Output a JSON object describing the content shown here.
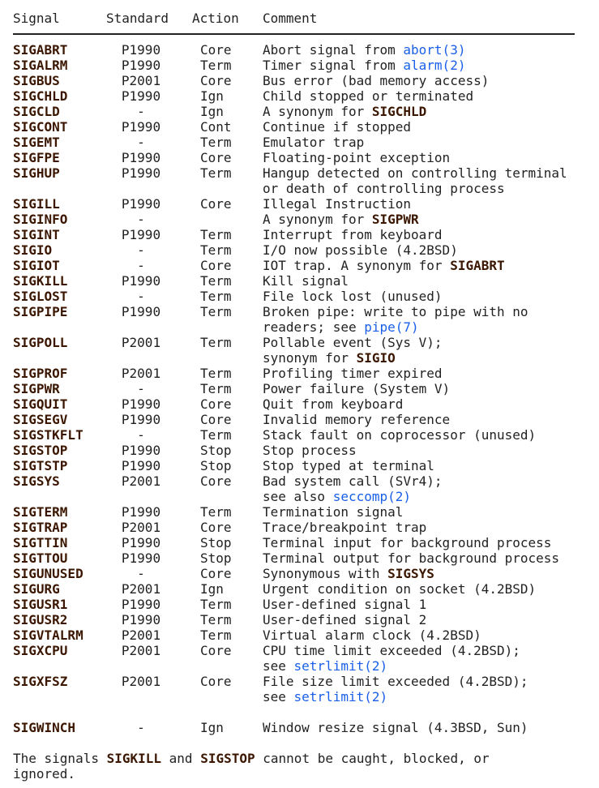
{
  "header": {
    "signal": "Signal",
    "standard": "Standard",
    "action": "Action",
    "comment": "Comment"
  },
  "rows": [
    {
      "signal": "SIGABRT",
      "standard": "P1990",
      "action": "Core",
      "comment": [
        [
          {
            "t": "Abort signal from "
          },
          {
            "t": "abort(3)",
            "link": true
          }
        ]
      ]
    },
    {
      "signal": "SIGALRM",
      "standard": "P1990",
      "action": "Term",
      "comment": [
        [
          {
            "t": "Timer signal from "
          },
          {
            "t": "alarm(2)",
            "link": true
          }
        ]
      ]
    },
    {
      "signal": "SIGBUS",
      "standard": "P2001",
      "action": "Core",
      "comment": [
        [
          {
            "t": "Bus error (bad memory access)"
          }
        ]
      ]
    },
    {
      "signal": "SIGCHLD",
      "standard": "P1990",
      "action": "Ign",
      "comment": [
        [
          {
            "t": "Child stopped or terminated"
          }
        ]
      ]
    },
    {
      "signal": "SIGCLD",
      "standard": "-",
      "action": "Ign",
      "comment": [
        [
          {
            "t": "A synonym for "
          },
          {
            "t": "SIGCHLD",
            "b": true
          }
        ]
      ]
    },
    {
      "signal": "SIGCONT",
      "standard": "P1990",
      "action": "Cont",
      "comment": [
        [
          {
            "t": "Continue if stopped"
          }
        ]
      ]
    },
    {
      "signal": "SIGEMT",
      "standard": "-",
      "action": "Term",
      "comment": [
        [
          {
            "t": "Emulator trap"
          }
        ]
      ]
    },
    {
      "signal": "SIGFPE",
      "standard": "P1990",
      "action": "Core",
      "comment": [
        [
          {
            "t": "Floating-point exception"
          }
        ]
      ]
    },
    {
      "signal": "SIGHUP",
      "standard": "P1990",
      "action": "Term",
      "comment": [
        [
          {
            "t": "Hangup detected on controlling terminal"
          }
        ],
        [
          {
            "t": "or death of controlling process"
          }
        ]
      ]
    },
    {
      "signal": "SIGILL",
      "standard": "P1990",
      "action": "Core",
      "comment": [
        [
          {
            "t": "Illegal Instruction"
          }
        ]
      ]
    },
    {
      "signal": "SIGINFO",
      "standard": "-",
      "action": "",
      "comment": [
        [
          {
            "t": "A synonym for "
          },
          {
            "t": "SIGPWR",
            "b": true
          }
        ]
      ]
    },
    {
      "signal": "SIGINT",
      "standard": "P1990",
      "action": "Term",
      "comment": [
        [
          {
            "t": "Interrupt from keyboard"
          }
        ]
      ]
    },
    {
      "signal": "SIGIO",
      "standard": "-",
      "action": "Term",
      "comment": [
        [
          {
            "t": "I/O now possible (4.2BSD)"
          }
        ]
      ]
    },
    {
      "signal": "SIGIOT",
      "standard": "-",
      "action": "Core",
      "comment": [
        [
          {
            "t": "IOT trap. A synonym for "
          },
          {
            "t": "SIGABRT",
            "b": true
          }
        ]
      ]
    },
    {
      "signal": "SIGKILL",
      "standard": "P1990",
      "action": "Term",
      "comment": [
        [
          {
            "t": "Kill signal"
          }
        ]
      ]
    },
    {
      "signal": "SIGLOST",
      "standard": "-",
      "action": "Term",
      "comment": [
        [
          {
            "t": "File lock lost (unused)"
          }
        ]
      ]
    },
    {
      "signal": "SIGPIPE",
      "standard": "P1990",
      "action": "Term",
      "comment": [
        [
          {
            "t": "Broken pipe: write to pipe with no"
          }
        ],
        [
          {
            "t": "readers; see "
          },
          {
            "t": "pipe(7)",
            "link": true
          }
        ]
      ]
    },
    {
      "signal": "SIGPOLL",
      "standard": "P2001",
      "action": "Term",
      "comment": [
        [
          {
            "t": "Pollable event (Sys V);"
          }
        ],
        [
          {
            "t": "synonym for "
          },
          {
            "t": "SIGIO",
            "b": true
          }
        ]
      ]
    },
    {
      "signal": "SIGPROF",
      "standard": "P2001",
      "action": "Term",
      "comment": [
        [
          {
            "t": "Profiling timer expired"
          }
        ]
      ]
    },
    {
      "signal": "SIGPWR",
      "standard": "-",
      "action": "Term",
      "comment": [
        [
          {
            "t": "Power failure (System V)"
          }
        ]
      ]
    },
    {
      "signal": "SIGQUIT",
      "standard": "P1990",
      "action": "Core",
      "comment": [
        [
          {
            "t": "Quit from keyboard"
          }
        ]
      ]
    },
    {
      "signal": "SIGSEGV",
      "standard": "P1990",
      "action": "Core",
      "comment": [
        [
          {
            "t": "Invalid memory reference"
          }
        ]
      ]
    },
    {
      "signal": "SIGSTKFLT",
      "standard": "-",
      "action": "Term",
      "comment": [
        [
          {
            "t": "Stack fault on coprocessor (unused)"
          }
        ]
      ]
    },
    {
      "signal": "SIGSTOP",
      "standard": "P1990",
      "action": "Stop",
      "comment": [
        [
          {
            "t": "Stop process"
          }
        ]
      ]
    },
    {
      "signal": "SIGTSTP",
      "standard": "P1990",
      "action": "Stop",
      "comment": [
        [
          {
            "t": "Stop typed at terminal"
          }
        ]
      ]
    },
    {
      "signal": "SIGSYS",
      "standard": "P2001",
      "action": "Core",
      "comment": [
        [
          {
            "t": "Bad system call (SVr4);"
          }
        ],
        [
          {
            "t": "see also "
          },
          {
            "t": "seccomp(2)",
            "link": true
          }
        ]
      ]
    },
    {
      "signal": "SIGTERM",
      "standard": "P1990",
      "action": "Term",
      "comment": [
        [
          {
            "t": "Termination signal"
          }
        ]
      ]
    },
    {
      "signal": "SIGTRAP",
      "standard": "P2001",
      "action": "Core",
      "comment": [
        [
          {
            "t": "Trace/breakpoint trap"
          }
        ]
      ]
    },
    {
      "signal": "SIGTTIN",
      "standard": "P1990",
      "action": "Stop",
      "comment": [
        [
          {
            "t": "Terminal input for background process"
          }
        ]
      ]
    },
    {
      "signal": "SIGTTOU",
      "standard": "P1990",
      "action": "Stop",
      "comment": [
        [
          {
            "t": "Terminal output for background process"
          }
        ]
      ]
    },
    {
      "signal": "SIGUNUSED",
      "standard": "-",
      "action": "Core",
      "comment": [
        [
          {
            "t": "Synonymous with "
          },
          {
            "t": "SIGSYS",
            "b": true
          }
        ]
      ]
    },
    {
      "signal": "SIGURG",
      "standard": "P2001",
      "action": "Ign",
      "comment": [
        [
          {
            "t": "Urgent condition on socket (4.2BSD)"
          }
        ]
      ]
    },
    {
      "signal": "SIGUSR1",
      "standard": "P1990",
      "action": "Term",
      "comment": [
        [
          {
            "t": "User-defined signal 1"
          }
        ]
      ]
    },
    {
      "signal": "SIGUSR2",
      "standard": "P1990",
      "action": "Term",
      "comment": [
        [
          {
            "t": "User-defined signal 2"
          }
        ]
      ]
    },
    {
      "signal": "SIGVTALRM",
      "standard": "P2001",
      "action": "Term",
      "comment": [
        [
          {
            "t": "Virtual alarm clock (4.2BSD)"
          }
        ]
      ]
    },
    {
      "signal": "SIGXCPU",
      "standard": "P2001",
      "action": "Core",
      "comment": [
        [
          {
            "t": "CPU time limit exceeded (4.2BSD);"
          }
        ],
        [
          {
            "t": "see "
          },
          {
            "t": "setrlimit(2)",
            "link": true
          }
        ]
      ]
    },
    {
      "signal": "SIGXFSZ",
      "standard": "P2001",
      "action": "Core",
      "comment": [
        [
          {
            "t": "File size limit exceeded (4.2BSD);"
          }
        ],
        [
          {
            "t": "see "
          },
          {
            "t": "setrlimit(2)",
            "link": true
          }
        ]
      ]
    },
    {
      "signal": "SIGWINCH",
      "standard": "-",
      "action": "Ign",
      "blank_before": true,
      "comment": [
        [
          {
            "t": "Window resize signal (4.3BSD, Sun)"
          }
        ]
      ]
    }
  ],
  "footer": [
    {
      "t": "The signals "
    },
    {
      "t": "SIGKILL",
      "b": true
    },
    {
      "t": " and "
    },
    {
      "t": "SIGSTOP",
      "b": true
    },
    {
      "t": " cannot be caught, blocked, or ignored."
    }
  ],
  "colors": {
    "text": "#222222",
    "bold": "#3b1600",
    "link": "#1a5fe8"
  }
}
